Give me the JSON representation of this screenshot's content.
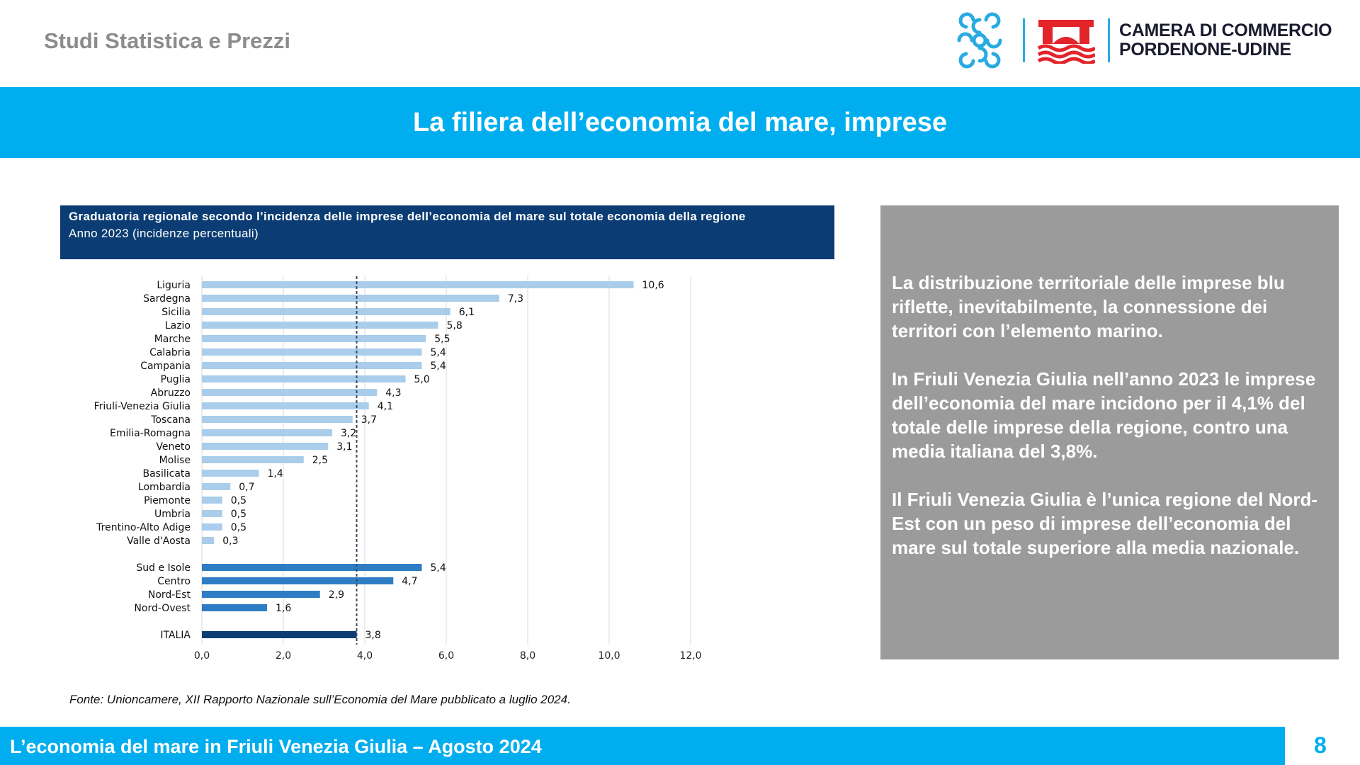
{
  "header": {
    "section_label": "Studi Statistica e Prezzi",
    "logo_line1": "CAMERA DI COMMERCIO",
    "logo_line2": "PORDENONE-UDINE"
  },
  "slide": {
    "title": "La filiera dell’economia del mare, imprese"
  },
  "chart_header": {
    "title": "Graduatoria regionale secondo l’incidenza delle imprese dell’economia del mare sul totale economia della regione",
    "subtitle": "Anno 2023 (incidenze percentuali)"
  },
  "chart_data": {
    "type": "bar",
    "orientation": "horizontal",
    "categories": [
      "Liguria",
      "Sardegna",
      "Sicilia",
      "Lazio",
      "Marche",
      "Calabria",
      "Campania",
      "Puglia",
      "Abruzzo",
      "Friuli-Venezia Giulia",
      "Toscana",
      "Emilia-Romagna",
      "Veneto",
      "Molise",
      "Basilicata",
      "Lombardia",
      "Piemonte",
      "Umbria",
      "Trentino-Alto Adige",
      "Valle d'Aosta",
      "Sud e Isole",
      "Centro",
      "Nord-Est",
      "Nord-Ovest",
      "ITALIA"
    ],
    "values": [
      10.6,
      7.3,
      6.1,
      5.8,
      5.5,
      5.4,
      5.4,
      5.0,
      4.3,
      4.1,
      3.7,
      3.2,
      3.1,
      2.5,
      1.4,
      0.7,
      0.5,
      0.5,
      0.5,
      0.3,
      5.4,
      4.7,
      2.9,
      1.6,
      3.8
    ],
    "value_labels": [
      "10,6",
      "7,3",
      "6,1",
      "5,8",
      "5,5",
      "5,4",
      "5,4",
      "5,0",
      "4,3",
      "4,1",
      "3,7",
      "3,2",
      "3,1",
      "2,5",
      "1,4",
      "0,7",
      "0,5",
      "0,5",
      "0,5",
      "0,3",
      "5,4",
      "4,7",
      "2,9",
      "1,6",
      "3,8"
    ],
    "groups": [
      "regione",
      "regione",
      "regione",
      "regione",
      "regione",
      "regione",
      "regione",
      "regione",
      "regione",
      "regione",
      "regione",
      "regione",
      "regione",
      "regione",
      "regione",
      "regione",
      "regione",
      "regione",
      "regione",
      "regione",
      "ripartizione",
      "ripartizione",
      "ripartizione",
      "ripartizione",
      "italia"
    ],
    "group_colors": {
      "regione": "#a9cdea",
      "ripartizione": "#2e7cc4",
      "italia": "#0b3c73"
    },
    "reference_line": 3.8,
    "xlim": [
      0,
      12
    ],
    "x_ticks": [
      "0,0",
      "2,0",
      "4,0",
      "6,0",
      "8,0",
      "10,0",
      "12,0"
    ],
    "grid": true
  },
  "source_note": "Fonte: Unioncamere, XII Rapporto Nazionale sull’Economia del Mare pubblicato a luglio 2024.",
  "textbox": {
    "p1": "La distribuzione territoriale delle imprese blu riflette, inevitabilmente, la connessione dei territori con l’elemento marino.",
    "p2": "In Friuli Venezia Giulia nell’anno 2023 le imprese dell’economia del mare incidono per il 4,1% del totale delle imprese della regione, contro una media italiana del 3,8%.",
    "p3": "Il Friuli Venezia Giulia è l’unica regione del Nord-Est con un peso di imprese dell’economia del mare sul totale superiore alla media nazionale."
  },
  "footer": {
    "label": "L’economia del mare in Friuli Venezia Giulia – Agosto 2024",
    "page_number": "8"
  }
}
